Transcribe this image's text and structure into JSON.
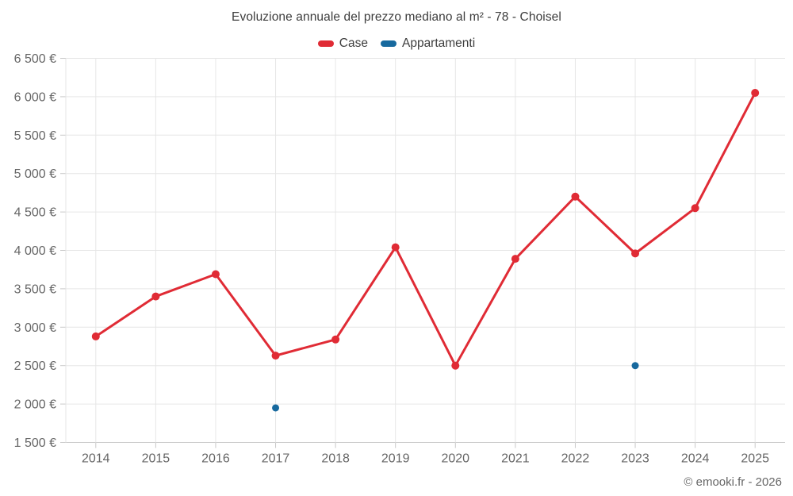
{
  "header": {
    "title": "Evoluzione annuale del prezzo mediano al m² - 78 - Choisel"
  },
  "legend": {
    "items": [
      {
        "label": "Case",
        "color": "#e02b35"
      },
      {
        "label": "Appartamenti",
        "color": "#17699e"
      }
    ]
  },
  "footer": {
    "copyright": "© emooki.fr - 2026"
  },
  "chart_data": {
    "type": "line",
    "title": "Evoluzione annuale del prezzo mediano al m² - 78 - Choisel",
    "categories": [
      "2014",
      "2015",
      "2016",
      "2017",
      "2018",
      "2019",
      "2020",
      "2021",
      "2022",
      "2023",
      "2024",
      "2025"
    ],
    "series": [
      {
        "name": "Case",
        "color": "#e02b35",
        "draw": "line+markers",
        "values": [
          2880,
          3400,
          3690,
          2630,
          2840,
          4040,
          2500,
          3890,
          4700,
          3960,
          4550,
          6050
        ]
      },
      {
        "name": "Appartamenti",
        "color": "#17699e",
        "draw": "markers",
        "values": [
          null,
          null,
          null,
          1950,
          null,
          null,
          null,
          null,
          null,
          2500,
          null,
          null
        ]
      }
    ],
    "ylim": [
      1500,
      6500
    ],
    "ytick_step": 500,
    "ytick_suffix": " €",
    "grid": true,
    "legend_position": "top",
    "colors": {
      "gridline": "#e6e6e6",
      "axis": "#c9c9c9",
      "axis_label": "#666666"
    }
  }
}
